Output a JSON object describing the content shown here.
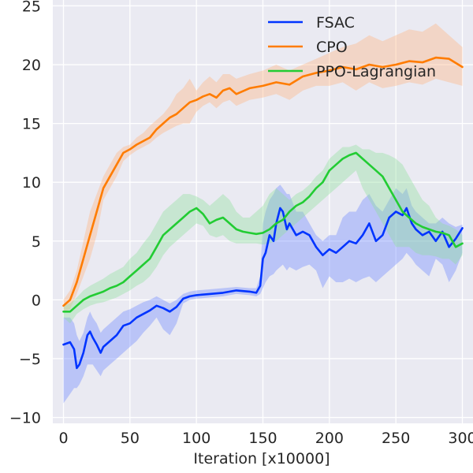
{
  "chart_data": {
    "type": "line",
    "title": "",
    "xlabel": "Iteration [x10000]",
    "ylabel": "",
    "xlim": [
      -8,
      308
    ],
    "ylim": [
      -10.5,
      25.5
    ],
    "xticks": [
      0,
      50,
      100,
      150,
      200,
      250,
      300
    ],
    "xtick_labels": [
      "0",
      "50",
      "100",
      "150",
      "200",
      "250",
      "300"
    ],
    "yticks": [
      -10,
      -5,
      0,
      5,
      10,
      15,
      20,
      25
    ],
    "ytick_labels": [
      "−10",
      "−5",
      "0",
      "5",
      "10",
      "15",
      "20",
      "25"
    ],
    "grid": true,
    "background": "#eaeaf2",
    "legend_position": "top-right",
    "series": [
      {
        "name": "FSAC",
        "color": "#0034ff",
        "band_color": "#6b86ff",
        "x": [
          0,
          5,
          8,
          10,
          12,
          15,
          18,
          20,
          22,
          25,
          28,
          30,
          35,
          40,
          45,
          50,
          55,
          60,
          65,
          70,
          75,
          80,
          85,
          90,
          95,
          100,
          110,
          120,
          130,
          140,
          145,
          148,
          150,
          152,
          155,
          158,
          160,
          163,
          165,
          168,
          170,
          175,
          180,
          185,
          190,
          195,
          200,
          205,
          210,
          215,
          220,
          225,
          230,
          235,
          240,
          245,
          250,
          255,
          258,
          262,
          265,
          270,
          275,
          280,
          285,
          290,
          295,
          300
        ],
        "y": [
          -3.8,
          -3.6,
          -4.2,
          -5.8,
          -5.5,
          -4.5,
          -3.0,
          -2.7,
          -3.2,
          -3.8,
          -4.5,
          -4.0,
          -3.5,
          -3.0,
          -2.2,
          -2.0,
          -1.5,
          -1.2,
          -0.9,
          -0.5,
          -0.7,
          -1.0,
          -0.6,
          0.1,
          0.3,
          0.4,
          0.5,
          0.6,
          0.8,
          0.7,
          0.6,
          1.2,
          3.5,
          4.0,
          5.5,
          5.0,
          6.5,
          7.8,
          7.5,
          6.0,
          6.5,
          5.5,
          5.8,
          5.5,
          4.5,
          3.8,
          4.3,
          4.0,
          4.5,
          5.0,
          4.8,
          5.5,
          6.5,
          5.0,
          5.5,
          7.0,
          7.5,
          7.2,
          7.8,
          6.5,
          6.0,
          5.5,
          5.8,
          5.0,
          5.8,
          4.5,
          5.2,
          6.1
        ],
        "upper": [
          -1.5,
          -1.5,
          -2.0,
          -3.0,
          -3.5,
          -2.8,
          -1.5,
          -1.0,
          -1.5,
          -2.0,
          -2.8,
          -2.5,
          -2.0,
          -1.5,
          -1.0,
          -0.8,
          -0.5,
          -0.2,
          0.0,
          0.3,
          0.0,
          -0.3,
          0.0,
          0.5,
          0.7,
          0.8,
          0.9,
          1.0,
          1.1,
          1.0,
          1.0,
          2.0,
          6.5,
          7.5,
          8.5,
          9.0,
          9.5,
          9.8,
          9.5,
          9.0,
          9.0,
          7.5,
          7.5,
          6.5,
          5.5,
          5.0,
          5.5,
          5.5,
          7.0,
          7.5,
          7.5,
          8.5,
          9.0,
          8.0,
          7.5,
          8.5,
          9.5,
          9.0,
          9.5,
          8.0,
          7.5,
          7.0,
          6.5,
          6.5,
          7.0,
          6.5,
          6.2,
          6.4
        ],
        "lower": [
          -8.8,
          -8.0,
          -7.5,
          -7.5,
          -7.2,
          -6.5,
          -5.5,
          -5.5,
          -5.5,
          -6.0,
          -6.5,
          -6.0,
          -5.5,
          -5.0,
          -4.5,
          -4.0,
          -3.5,
          -2.8,
          -2.2,
          -1.5,
          -2.5,
          -3.0,
          -2.0,
          -0.3,
          0.0,
          0.1,
          0.2,
          0.3,
          0.5,
          0.4,
          0.3,
          0.5,
          1.0,
          1.5,
          2.0,
          2.2,
          2.5,
          2.8,
          3.0,
          2.5,
          2.8,
          2.5,
          2.8,
          3.0,
          2.5,
          1.0,
          2.0,
          1.5,
          1.5,
          1.8,
          1.5,
          1.8,
          2.0,
          1.5,
          2.0,
          2.5,
          3.0,
          3.5,
          4.0,
          3.5,
          3.0,
          2.5,
          2.0,
          3.5,
          3.0,
          1.5,
          2.5,
          4.0
        ]
      },
      {
        "name": "CPO",
        "color": "#ff7c00",
        "band_color": "#ffb27d",
        "x": [
          0,
          5,
          10,
          15,
          20,
          25,
          30,
          35,
          40,
          45,
          50,
          55,
          60,
          65,
          70,
          75,
          80,
          85,
          90,
          95,
          100,
          105,
          110,
          115,
          120,
          125,
          130,
          140,
          150,
          160,
          170,
          180,
          190,
          200,
          210,
          220,
          230,
          240,
          250,
          260,
          270,
          280,
          290,
          300
        ],
        "y": [
          -0.5,
          0.0,
          1.5,
          3.5,
          5.5,
          7.5,
          9.5,
          10.5,
          11.5,
          12.5,
          12.8,
          13.2,
          13.5,
          13.8,
          14.5,
          15.0,
          15.5,
          15.8,
          16.3,
          16.8,
          17.0,
          17.3,
          17.5,
          17.2,
          17.8,
          18.0,
          17.5,
          18.0,
          18.2,
          18.5,
          18.3,
          19.0,
          19.3,
          19.5,
          19.8,
          19.6,
          20.0,
          19.8,
          20.0,
          20.3,
          20.2,
          20.6,
          20.5,
          19.8
        ],
        "upper": [
          0.0,
          0.8,
          2.5,
          5.0,
          7.5,
          9.0,
          10.5,
          11.5,
          12.5,
          13.0,
          13.2,
          13.8,
          14.2,
          14.8,
          15.3,
          15.8,
          16.5,
          17.5,
          18.0,
          18.8,
          17.8,
          18.5,
          19.0,
          18.5,
          19.2,
          19.2,
          18.8,
          19.2,
          19.5,
          20.0,
          19.5,
          20.0,
          20.5,
          21.0,
          21.5,
          21.8,
          22.5,
          22.0,
          22.5,
          23.0,
          22.8,
          23.5,
          22.5,
          21.5
        ],
        "lower": [
          -1.0,
          -0.8,
          0.5,
          2.0,
          3.5,
          5.5,
          8.5,
          9.5,
          10.5,
          11.8,
          12.3,
          12.7,
          13.0,
          13.3,
          13.8,
          14.2,
          14.5,
          14.8,
          15.0,
          15.0,
          16.0,
          16.5,
          16.8,
          16.3,
          16.8,
          17.0,
          16.5,
          17.0,
          17.2,
          17.5,
          17.0,
          17.8,
          18.2,
          18.2,
          18.5,
          17.8,
          18.5,
          18.0,
          18.2,
          18.5,
          18.3,
          18.8,
          18.5,
          18.2
        ]
      },
      {
        "name": "PPO-Lagrangian",
        "color": "#22cc33",
        "band_color": "#8fe09a",
        "x": [
          0,
          5,
          10,
          15,
          20,
          25,
          30,
          35,
          40,
          45,
          50,
          55,
          60,
          65,
          70,
          75,
          80,
          85,
          90,
          95,
          100,
          105,
          110,
          115,
          120,
          125,
          130,
          135,
          140,
          145,
          150,
          155,
          160,
          165,
          170,
          175,
          180,
          185,
          190,
          195,
          200,
          205,
          210,
          215,
          220,
          225,
          230,
          235,
          240,
          245,
          250,
          255,
          260,
          265,
          270,
          275,
          280,
          285,
          290,
          295,
          300
        ],
        "y": [
          -1.0,
          -1.0,
          -0.5,
          0.0,
          0.3,
          0.5,
          0.7,
          1.0,
          1.2,
          1.5,
          2.0,
          2.5,
          3.0,
          3.5,
          4.5,
          5.5,
          6.0,
          6.5,
          7.0,
          7.5,
          7.8,
          7.3,
          6.5,
          6.8,
          7.0,
          6.5,
          6.0,
          5.8,
          5.7,
          5.6,
          5.7,
          6.0,
          6.5,
          6.8,
          7.5,
          8.0,
          8.3,
          8.8,
          9.5,
          10.0,
          11.0,
          11.5,
          12.0,
          12.3,
          12.5,
          12.0,
          11.5,
          11.0,
          10.5,
          9.5,
          8.5,
          7.5,
          7.0,
          6.5,
          6.2,
          6.0,
          5.8,
          5.7,
          5.5,
          4.5,
          4.8
        ],
        "upper": [
          -0.5,
          -0.3,
          0.2,
          0.8,
          1.2,
          1.5,
          1.8,
          2.2,
          2.5,
          2.8,
          3.5,
          4.0,
          4.8,
          5.5,
          6.5,
          7.5,
          8.0,
          8.5,
          9.0,
          9.0,
          8.8,
          8.5,
          8.0,
          8.5,
          9.0,
          8.5,
          7.5,
          7.0,
          7.0,
          7.5,
          8.0,
          9.0,
          9.5,
          9.0,
          8.5,
          9.0,
          9.3,
          9.8,
          10.5,
          11.0,
          12.0,
          12.5,
          13.0,
          13.0,
          13.2,
          12.8,
          12.8,
          12.5,
          12.5,
          12.3,
          12.0,
          11.5,
          10.5,
          9.5,
          8.5,
          8.0,
          7.0,
          6.5,
          6.3,
          6.0,
          5.5
        ],
        "lower": [
          -1.5,
          -2.0,
          -1.2,
          -0.8,
          -0.5,
          -0.3,
          -0.2,
          0.0,
          0.2,
          0.5,
          0.8,
          1.2,
          1.5,
          2.0,
          2.8,
          3.8,
          4.5,
          5.0,
          5.5,
          6.0,
          6.5,
          6.3,
          5.5,
          5.3,
          5.5,
          5.0,
          4.8,
          4.8,
          4.8,
          4.8,
          4.7,
          4.8,
          5.0,
          5.5,
          6.0,
          6.5,
          7.0,
          7.5,
          8.0,
          8.5,
          9.0,
          9.5,
          10.0,
          10.5,
          11.0,
          9.5,
          8.5,
          7.5,
          6.5,
          5.5,
          4.5,
          4.5,
          4.5,
          4.0,
          3.8,
          3.8,
          3.7,
          3.5,
          3.5,
          3.0,
          3.8
        ]
      }
    ]
  }
}
